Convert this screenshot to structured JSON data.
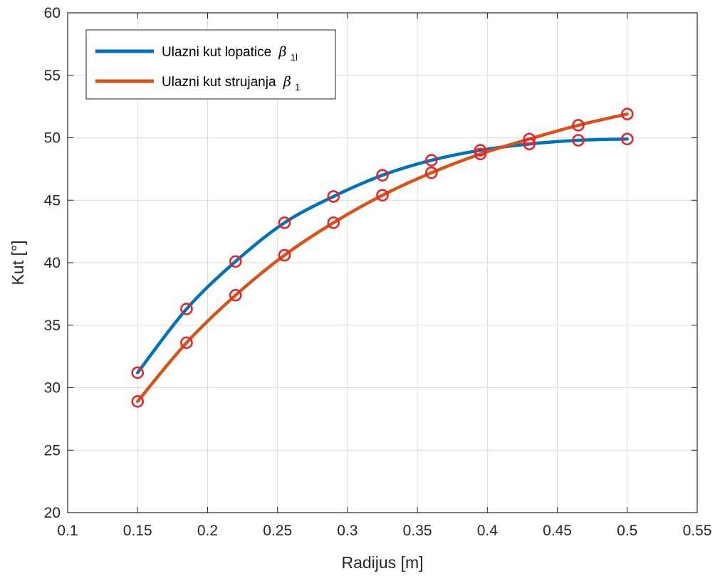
{
  "chart_data": {
    "type": "line",
    "title": "",
    "xlabel": "Radijus [m]",
    "ylabel": "Kut [°]",
    "xlim": [
      0.1,
      0.55
    ],
    "ylim": [
      20,
      60
    ],
    "xticks": [
      0.1,
      0.15,
      0.2,
      0.25,
      0.3,
      0.35,
      0.4,
      0.45,
      0.5,
      0.55
    ],
    "yticks": [
      20,
      25,
      30,
      35,
      40,
      45,
      50,
      55,
      60
    ],
    "xtick_labels": [
      "0.1",
      "0.15",
      "0.2",
      "0.25",
      "0.3",
      "0.35",
      "0.4",
      "0.45",
      "0.5",
      "0.55"
    ],
    "ytick_labels": [
      "20",
      "25",
      "30",
      "35",
      "40",
      "45",
      "50",
      "55",
      "60"
    ],
    "grid": true,
    "legend_position": "top-left",
    "marker": "circle",
    "marker_color": "#e8232a",
    "x": [
      0.15,
      0.185,
      0.22,
      0.255,
      0.29,
      0.325,
      0.36,
      0.395,
      0.43,
      0.465,
      0.5
    ],
    "series": [
      {
        "name": "Ulazni kut lopatice",
        "name_symbol": "β",
        "name_subscript": "1l",
        "color": "#0072bd",
        "values": [
          31.2,
          36.3,
          40.1,
          43.2,
          45.3,
          47.0,
          48.2,
          49.0,
          49.5,
          49.8,
          49.9
        ]
      },
      {
        "name": "Ulazni kut strujanja",
        "name_symbol": "β",
        "name_subscript": "1",
        "color": "#d95319",
        "values": [
          28.9,
          33.6,
          37.4,
          40.6,
          43.2,
          45.4,
          47.2,
          48.7,
          49.9,
          51.0,
          51.9
        ]
      }
    ]
  }
}
